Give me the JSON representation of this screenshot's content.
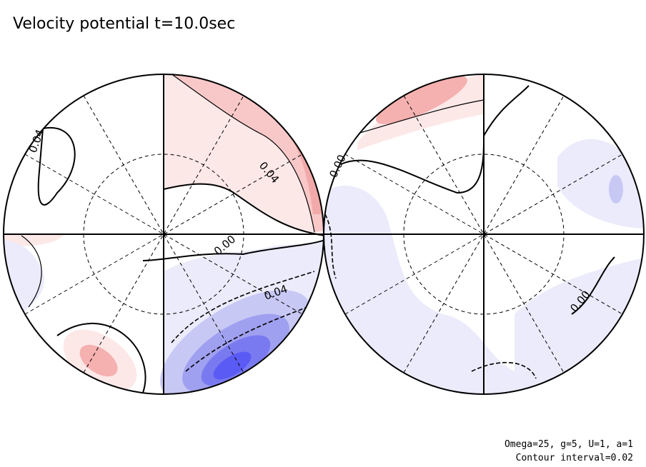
{
  "title": "Velocity potential t=10.0sec",
  "left_hemisphere": {
    "contour_labels": [
      "0.04",
      "0.04",
      "0.00",
      "0.04"
    ]
  },
  "right_hemisphere": {
    "contour_labels": [
      "0.00",
      "0.00"
    ]
  },
  "footer": {
    "parameters": "Omega=25, g=5, U=1, a=1",
    "contour_interval": "Contour interval=0.02"
  }
}
